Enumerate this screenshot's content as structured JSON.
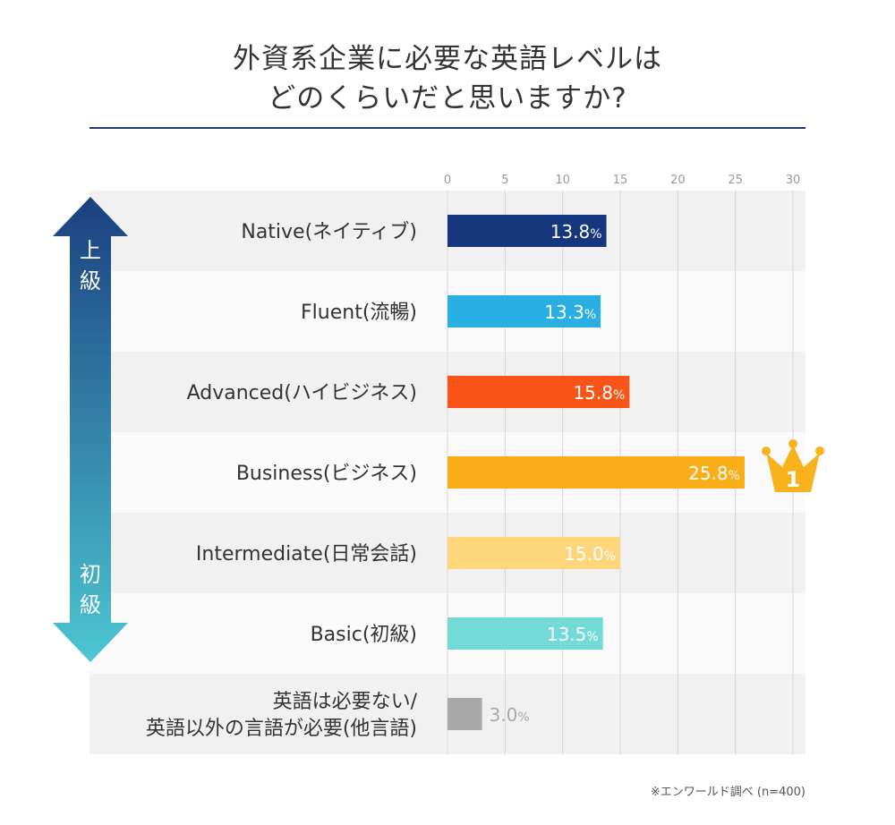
{
  "title": {
    "line1": "外資系企業に必要な英語レベルは",
    "line2": "どのくらいだと思いますか?"
  },
  "footnote": "※エンワールド調べ (n=400)",
  "arrow": {
    "top_label": [
      "上",
      "級"
    ],
    "bottom_label": [
      "初",
      "級"
    ],
    "color_top": "#1b3f7f",
    "color_bottom": "#4cc7d2"
  },
  "rank_badge": {
    "text": "1",
    "color": "#f7b21c"
  },
  "chart_data": {
    "type": "bar",
    "orientation": "horizontal",
    "xlim": [
      0,
      30
    ],
    "xticks": [
      0,
      5,
      10,
      15,
      20,
      25,
      30
    ],
    "grid": true,
    "value_suffix": "%",
    "categories": [
      [
        "Native(ネイティブ)"
      ],
      [
        "Fluent(流暢)"
      ],
      [
        "Advanced(ハイビジネス)"
      ],
      [
        "Business(ビジネス)"
      ],
      [
        "Intermediate(日常会話)"
      ],
      [
        "Basic(初級)"
      ],
      [
        "英語は必要ない/",
        "英語以外の言語が必要(他言語)"
      ]
    ],
    "values": [
      13.8,
      13.3,
      15.8,
      25.8,
      15.0,
      13.5,
      3.0
    ],
    "value_labels": [
      "13.8",
      "13.3",
      "15.8",
      "25.8",
      "15.0",
      "13.5",
      "3.0"
    ],
    "colors": [
      "#16367e",
      "#29afe4",
      "#fa5418",
      "#f9ae17",
      "#fdd57a",
      "#73dad8",
      "#a9a9a9"
    ]
  }
}
